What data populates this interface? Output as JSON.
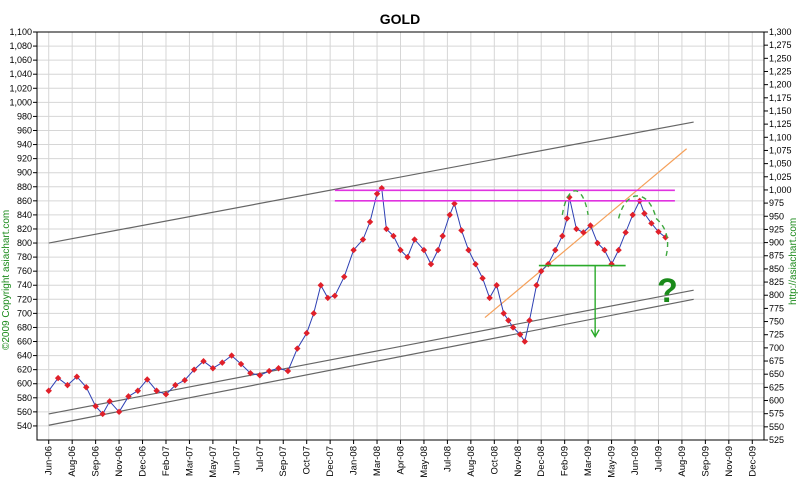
{
  "chart_data": {
    "type": "line",
    "title": "GOLD",
    "xlabel": "",
    "ylabel": "",
    "grid": true,
    "left_axis": {
      "ylim": [
        520,
        1100
      ],
      "ticks": [
        "540",
        "560",
        "580",
        "600",
        "620",
        "640",
        "660",
        "680",
        "700",
        "720",
        "740",
        "760",
        "780",
        "800",
        "820",
        "840",
        "860",
        "880",
        "900",
        "920",
        "940",
        "960",
        "980",
        "1,000",
        "1,020",
        "1,040",
        "1,060",
        "1,080",
        "1,100"
      ]
    },
    "right_axis": {
      "ylim": [
        525,
        1300
      ],
      "ticks": [
        "525",
        "550",
        "575",
        "600",
        "625",
        "650",
        "675",
        "700",
        "725",
        "750",
        "775",
        "800",
        "825",
        "850",
        "875",
        "900",
        "925",
        "950",
        "975",
        "1,000",
        "1,025",
        "1,050",
        "1,075",
        "1,100",
        "1,125",
        "1,150",
        "1,175",
        "1,200",
        "1,225",
        "1,250",
        "1,275",
        "1,300"
      ]
    },
    "x_ticks": [
      "Jun-06",
      "Aug-06",
      "Sep-06",
      "Nov-06",
      "Dec-06",
      "Feb-07",
      "Mar-07",
      "May-07",
      "Jun-07",
      "Jul-07",
      "Sep-07",
      "Oct-07",
      "Dec-07",
      "Jan-08",
      "Mar-08",
      "Apr-08",
      "May-08",
      "Jul-08",
      "Aug-08",
      "Oct-08",
      "Nov-08",
      "Dec-08",
      "Feb-09",
      "Mar-09",
      "May-09",
      "Jun-09",
      "Jul-09",
      "Aug-09",
      "Sep-09",
      "Nov-09",
      "Dec-09"
    ],
    "series": [
      {
        "color": "#e0202a",
        "line_color": "#2d3fb3",
        "points": [
          [
            0,
            590
          ],
          [
            0.4,
            608
          ],
          [
            0.8,
            598
          ],
          [
            1.2,
            610
          ],
          [
            1.6,
            595
          ],
          [
            2.0,
            568
          ],
          [
            2.3,
            557
          ],
          [
            2.6,
            575
          ],
          [
            3.0,
            560
          ],
          [
            3.4,
            582
          ],
          [
            3.8,
            590
          ],
          [
            4.2,
            606
          ],
          [
            4.6,
            590
          ],
          [
            5.0,
            585
          ],
          [
            5.4,
            598
          ],
          [
            5.8,
            605
          ],
          [
            6.2,
            620
          ],
          [
            6.6,
            632
          ],
          [
            7.0,
            622
          ],
          [
            7.4,
            630
          ],
          [
            7.8,
            640
          ],
          [
            8.2,
            628
          ],
          [
            8.6,
            615
          ],
          [
            9.0,
            612
          ],
          [
            9.4,
            618
          ],
          [
            9.8,
            622
          ],
          [
            10.2,
            618
          ],
          [
            10.6,
            650
          ],
          [
            11.0,
            672
          ],
          [
            11.3,
            700
          ],
          [
            11.6,
            740
          ],
          [
            11.9,
            722
          ],
          [
            12.2,
            725
          ],
          [
            12.6,
            752
          ],
          [
            13.0,
            790
          ],
          [
            13.4,
            805
          ],
          [
            13.7,
            830
          ],
          [
            14.0,
            870
          ],
          [
            14.2,
            878
          ],
          [
            14.4,
            820
          ],
          [
            14.7,
            810
          ],
          [
            15.0,
            790
          ],
          [
            15.3,
            780
          ],
          [
            15.6,
            805
          ],
          [
            16.0,
            790
          ],
          [
            16.3,
            770
          ],
          [
            16.6,
            790
          ],
          [
            16.8,
            810
          ],
          [
            17.1,
            840
          ],
          [
            17.3,
            856
          ],
          [
            17.6,
            818
          ],
          [
            17.9,
            790
          ],
          [
            18.2,
            770
          ],
          [
            18.5,
            750
          ],
          [
            18.8,
            722
          ],
          [
            19.1,
            740
          ],
          [
            19.4,
            700
          ],
          [
            19.6,
            690
          ],
          [
            19.8,
            680
          ],
          [
            20.1,
            670
          ],
          [
            20.3,
            660
          ],
          [
            20.5,
            690
          ],
          [
            20.8,
            740
          ],
          [
            21.0,
            760
          ],
          [
            21.3,
            770
          ],
          [
            21.6,
            790
          ],
          [
            21.9,
            810
          ],
          [
            22.1,
            835
          ],
          [
            22.2,
            865
          ],
          [
            22.5,
            820
          ],
          [
            22.8,
            815
          ],
          [
            23.1,
            825
          ],
          [
            23.4,
            800
          ],
          [
            23.7,
            790
          ],
          [
            24.0,
            770
          ],
          [
            24.3,
            790
          ],
          [
            24.6,
            815
          ],
          [
            24.9,
            840
          ],
          [
            25.2,
            860
          ],
          [
            25.4,
            842
          ],
          [
            25.7,
            828
          ],
          [
            26.0,
            816
          ],
          [
            26.3,
            808
          ]
        ]
      }
    ],
    "annotations": [
      {
        "kind": "hline",
        "y": 875,
        "x0": 12.2,
        "x1": 26.7,
        "color": "#e033e0"
      },
      {
        "kind": "hline",
        "y": 860,
        "x0": 12.2,
        "x1": 26.7,
        "color": "#e033e0"
      },
      {
        "kind": "hline",
        "y": 768,
        "x0": 20.9,
        "x1": 24.6,
        "color": "#2aaa2a"
      },
      {
        "kind": "arrow",
        "y0": 768,
        "y1": 667,
        "x": 23.3,
        "color": "#2aaa2a"
      },
      {
        "kind": "trendline",
        "y0": 800,
        "y1": 972,
        "x0": 0,
        "x1": 27.5,
        "color": "#666666"
      },
      {
        "kind": "trendline",
        "y0": 557,
        "y1": 733,
        "x0": 0,
        "x1": 27.5,
        "color": "#666666"
      },
      {
        "kind": "trendline",
        "y0": 541,
        "y1": 720,
        "x0": 0,
        "x1": 27.5,
        "color": "#666666"
      },
      {
        "kind": "trendline",
        "y0": 694,
        "y1": 934,
        "x0": 18.6,
        "x1": 27.2,
        "color": "#f5a05a"
      }
    ],
    "question_mark": "?",
    "left_side_label": "©2009 Copyright asiachart.com",
    "right_side_label": "http://asiachart.com"
  }
}
